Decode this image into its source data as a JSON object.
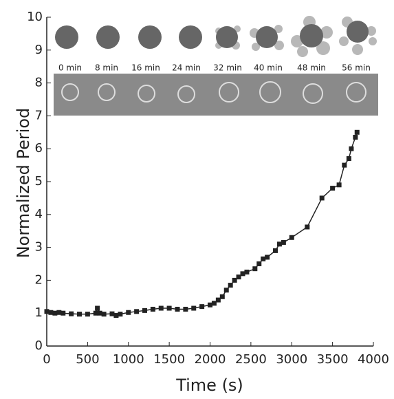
{
  "chart_data": {
    "type": "line",
    "xlabel": "Time (s)",
    "ylabel": "Normalized Period",
    "annotations": [
      "0 min",
      "8 min",
      "16 min",
      "24 min",
      "32 min",
      "40 min",
      "48 min",
      "56 min"
    ],
    "x": [
      0,
      50,
      100,
      150,
      200,
      300,
      400,
      500,
      600,
      620,
      650,
      700,
      800,
      850,
      900,
      1000,
      1100,
      1200,
      1300,
      1400,
      1500,
      1600,
      1700,
      1800,
      1900,
      2000,
      2050,
      2100,
      2150,
      2200,
      2250,
      2300,
      2350,
      2400,
      2450,
      2550,
      2600,
      2650,
      2700,
      2800,
      2850,
      2900,
      3000,
      3190,
      3370,
      3500,
      3580,
      3645,
      3700,
      3730,
      3780,
      3800
    ],
    "series": [
      {
        "color": "#222222",
        "values": [
          1.05,
          1.02,
          1.0,
          1.02,
          1.0,
          0.98,
          0.97,
          0.97,
          1.0,
          1.15,
          1.0,
          0.97,
          0.98,
          0.93,
          0.97,
          1.02,
          1.05,
          1.08,
          1.12,
          1.15,
          1.15,
          1.12,
          1.12,
          1.15,
          1.2,
          1.25,
          1.3,
          1.4,
          1.5,
          1.7,
          1.85,
          2.0,
          2.1,
          2.2,
          2.25,
          2.35,
          2.5,
          2.65,
          2.7,
          2.9,
          3.1,
          3.15,
          3.3,
          3.62,
          4.5,
          4.8,
          4.9,
          5.5,
          5.7,
          6.0,
          6.35,
          6.5
        ]
      }
    ],
    "xlim": [
      0,
      4000
    ],
    "xticks": [
      0,
      500,
      1000,
      1500,
      2000,
      2500,
      3000,
      3500,
      4000
    ],
    "ylim": [
      0,
      10
    ],
    "yticks": [
      0,
      1,
      2,
      3,
      4,
      5,
      6,
      7,
      8,
      9,
      10
    ]
  }
}
